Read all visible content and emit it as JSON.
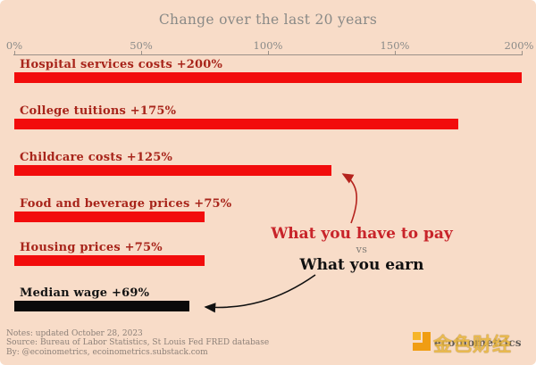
{
  "title": "Change over the last 20 years",
  "chart_data": {
    "type": "bar",
    "orientation": "horizontal",
    "title": "Change over the last 20 years",
    "xlabel": "",
    "ylabel": "",
    "xlim": [
      0,
      200
    ],
    "x_tick_values": [
      0,
      50,
      100,
      150,
      200
    ],
    "x_tick_labels": [
      "0%",
      "50%",
      "100%",
      "150%",
      "200%"
    ],
    "grid": false,
    "legend": "none",
    "bars": [
      {
        "category": "Hospital services costs",
        "label": "Hospital services costs +200%",
        "value": 200,
        "bar_color": "#f20c0c",
        "label_color": "#a8251b"
      },
      {
        "category": "College tuitions",
        "label": "College tuitions +175%",
        "value": 175,
        "bar_color": "#f20c0c",
        "label_color": "#a8251b"
      },
      {
        "category": "Childcare costs",
        "label": "Childcare costs +125%",
        "value": 125,
        "bar_color": "#f20c0c",
        "label_color": "#a8251b"
      },
      {
        "category": "Food and beverage prices",
        "label": "Food and beverage prices +75%",
        "value": 75,
        "bar_color": "#f20c0c",
        "label_color": "#a8251b"
      },
      {
        "category": "Housing prices",
        "label": "Housing prices +75%",
        "value": 75,
        "bar_color": "#f20c0c",
        "label_color": "#a8251b"
      },
      {
        "category": "Median wage",
        "label": "Median wage +69%",
        "value": 69,
        "bar_color": "#0a0a0a",
        "label_color": "#141414"
      }
    ],
    "annotations": [
      "What you have to pay",
      "vs",
      "What you earn"
    ]
  },
  "annotation": {
    "pay": "What you have to pay",
    "vs": "vs",
    "earn": "What you earn",
    "pay_color": "#c8242a",
    "earn_color": "#101010"
  },
  "footer": {
    "lines": [
      "Notes: updated October 28, 2023",
      "Source: Bureau of Labor Statistics, St Louis Fed FRED database",
      "By: @ecoinometrics, ecoinometrics.substack.com"
    ]
  },
  "watermark": {
    "cn_text": "金色财经",
    "latin_text": "ecoinometrics"
  },
  "colors": {
    "background": "#f8dcc8",
    "bar_red": "#f20c0c",
    "bar_black": "#0a0a0a",
    "label_red": "#a8251b",
    "title_gray": "#8a8a87",
    "axis_gray": "#9b9189",
    "footer_gray": "#8d8078",
    "annotation_red": "#c8242a",
    "logo_orange": "#f09d13",
    "logo_gold": "#e8b53a"
  }
}
